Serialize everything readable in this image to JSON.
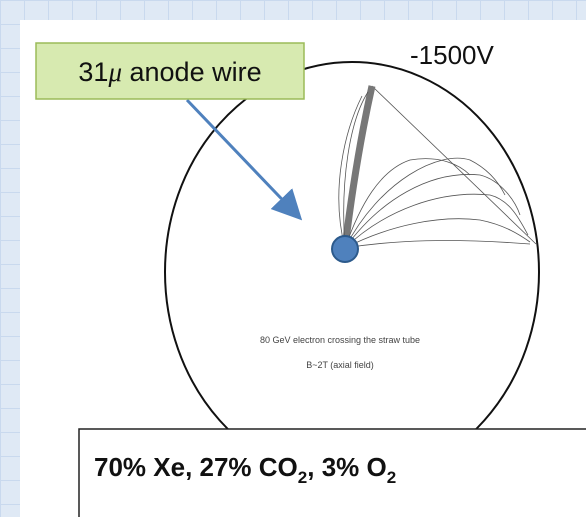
{
  "label": {
    "symbol": "31",
    "unit": "μ",
    "text": " anode wire"
  },
  "voltage": "-1500V",
  "caption": [
    "80 GeV electron crossing the straw tube",
    "B~2T (axial field)"
  ],
  "gas_mixture": [
    "70% Xe, 27% CO",
    "2",
    ", 3% O",
    "2"
  ]
}
